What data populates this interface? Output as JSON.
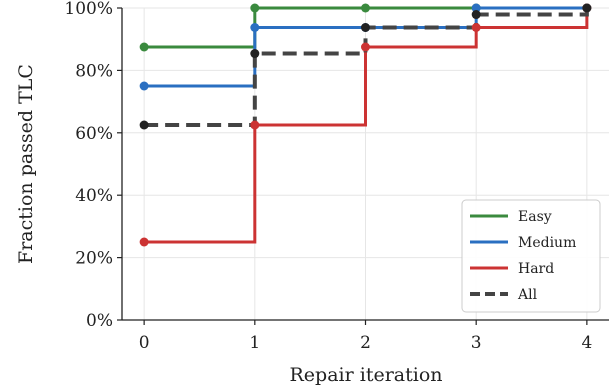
{
  "chart_data": {
    "type": "line",
    "step": "post",
    "x": [
      0,
      1,
      2,
      3,
      4
    ],
    "xlabel": "Repair iteration",
    "ylabel": "Fraction passed TLC",
    "xlim": [
      -0.2,
      4.2
    ],
    "ylim": [
      0,
      100
    ],
    "x_ticks": [
      "0",
      "1",
      "2",
      "3",
      "4"
    ],
    "y_ticks": [
      "0%",
      "20%",
      "40%",
      "60%",
      "80%",
      "100%"
    ],
    "y_tick_values": [
      0,
      20,
      40,
      60,
      80,
      100
    ],
    "grid": true,
    "legend_position": "lower-right",
    "series": [
      {
        "name": "Easy",
        "values": [
          87.5,
          100,
          100,
          100,
          100
        ],
        "color": "#3a8a3e",
        "style": "solid"
      },
      {
        "name": "Medium",
        "values": [
          75,
          93.75,
          93.75,
          100,
          100
        ],
        "color": "#2a6fc1",
        "style": "solid"
      },
      {
        "name": "Hard",
        "values": [
          25,
          62.5,
          87.5,
          93.75,
          100
        ],
        "color": "#cc3333",
        "style": "solid"
      },
      {
        "name": "All",
        "values": [
          62.5,
          85.4,
          93.75,
          97.9,
          100
        ],
        "color": "#444444",
        "style": "dashed"
      }
    ]
  }
}
